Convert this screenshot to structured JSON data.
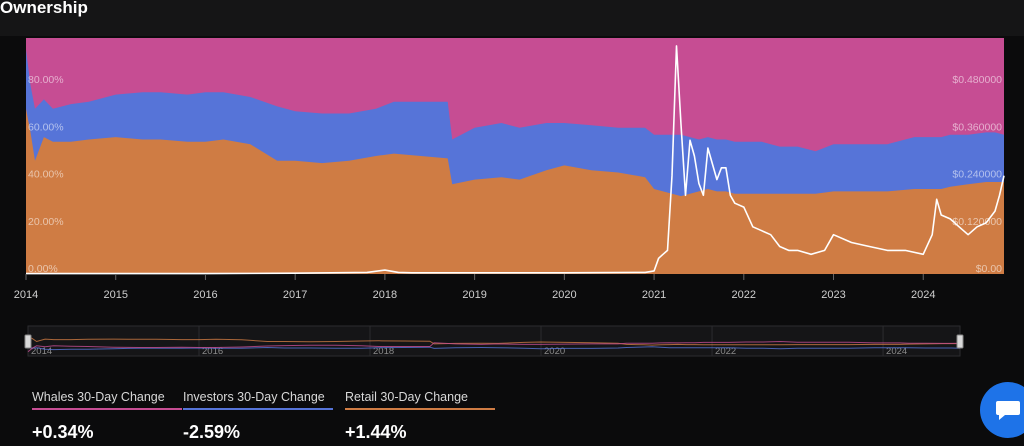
{
  "page": {
    "title": "Ownership"
  },
  "colors": {
    "whales": "#c64d93",
    "investors": "#5674d8",
    "retail": "#cf7c44",
    "price": "#ffffff"
  },
  "chart_data": {
    "type": "area",
    "x_range": [
      2014.0,
      2024.9
    ],
    "x_ticks": [
      {
        "value": 2014,
        "label": "2014"
      },
      {
        "value": 2015,
        "label": "2015"
      },
      {
        "value": 2016,
        "label": "2016"
      },
      {
        "value": 2017,
        "label": "2017"
      },
      {
        "value": 2018,
        "label": "2018"
      },
      {
        "value": 2019,
        "label": "2019"
      },
      {
        "value": 2020,
        "label": "2020"
      },
      {
        "value": 2021,
        "label": "2021"
      },
      {
        "value": 2022,
        "label": "2022"
      },
      {
        "value": 2023,
        "label": "2023"
      },
      {
        "value": 2024,
        "label": "2024"
      }
    ],
    "y_left": {
      "range": [
        0,
        100
      ],
      "ticks": [
        {
          "value": 0,
          "label": "0.00%"
        },
        {
          "value": 20,
          "label": "20.00%"
        },
        {
          "value": 40,
          "label": "40.00%"
        },
        {
          "value": 60,
          "label": "60.00%"
        },
        {
          "value": 80,
          "label": "80.00%"
        }
      ]
    },
    "y_right": {
      "range": [
        0,
        0.6
      ],
      "ticks": [
        {
          "value": 0,
          "label": "$0.00"
        },
        {
          "value": 0.12,
          "label": "$0.120000"
        },
        {
          "value": 0.24,
          "label": "$0.240000"
        },
        {
          "value": 0.36,
          "label": "$0.360000"
        },
        {
          "value": 0.48,
          "label": "$0.480000"
        }
      ]
    },
    "x": [
      2014.0,
      2014.05,
      2014.1,
      2014.2,
      2014.3,
      2014.5,
      2014.7,
      2015.0,
      2015.3,
      2015.5,
      2015.8,
      2016.0,
      2016.2,
      2016.5,
      2016.8,
      2017.0,
      2017.3,
      2017.6,
      2017.9,
      2018.1,
      2018.4,
      2018.7,
      2018.75,
      2019.0,
      2019.3,
      2019.5,
      2019.8,
      2020.0,
      2020.3,
      2020.6,
      2020.9,
      2021.0,
      2021.2,
      2021.3,
      2021.4,
      2021.5,
      2021.6,
      2021.7,
      2021.8,
      2021.9,
      2022.0,
      2022.2,
      2022.4,
      2022.6,
      2022.8,
      2023.0,
      2023.3,
      2023.6,
      2023.9,
      2024.1,
      2024.2,
      2024.3,
      2024.5,
      2024.7,
      2024.8,
      2024.9
    ],
    "series": [
      {
        "name": "Retail",
        "values": [
          70,
          60,
          48,
          58,
          56,
          56,
          57,
          58,
          57,
          57,
          56,
          56,
          57,
          55,
          48,
          48,
          47,
          48,
          50,
          51,
          50,
          49,
          38,
          40,
          41,
          40,
          44,
          46,
          44,
          43,
          41,
          36,
          34,
          33,
          34,
          35,
          36,
          35,
          35,
          34,
          34,
          34,
          34,
          34,
          34,
          35,
          35,
          35,
          36,
          36,
          36,
          37,
          38,
          39,
          39,
          39
        ]
      },
      {
        "name": "Investors",
        "values": [
          25,
          20,
          22,
          16,
          14,
          16,
          16,
          18,
          20,
          20,
          20,
          21,
          20,
          20,
          23,
          21,
          21,
          20,
          20,
          22,
          23,
          24,
          19,
          22,
          23,
          22,
          20,
          18,
          19,
          19,
          21,
          23,
          25,
          26,
          24,
          22,
          22,
          22,
          22,
          22,
          22,
          22,
          20,
          20,
          18,
          20,
          20,
          20,
          22,
          22,
          22,
          22,
          21,
          21,
          21,
          20
        ]
      },
      {
        "name": "Whales",
        "values": [
          5,
          20,
          30,
          26,
          30,
          28,
          27,
          24,
          23,
          23,
          24,
          23,
          23,
          25,
          29,
          31,
          32,
          32,
          30,
          27,
          27,
          27,
          43,
          38,
          36,
          38,
          36,
          36,
          37,
          38,
          38,
          41,
          41,
          41,
          42,
          43,
          42,
          43,
          43,
          44,
          44,
          44,
          46,
          46,
          48,
          45,
          45,
          45,
          42,
          42,
          42,
          41,
          41,
          40,
          40,
          41
        ]
      }
    ],
    "price": {
      "x": [
        2014.0,
        2014.5,
        2015.0,
        2016.0,
        2017.0,
        2017.8,
        2018.0,
        2018.15,
        2018.3,
        2019.0,
        2020.0,
        2020.9,
        2021.0,
        2021.05,
        2021.1,
        2021.15,
        2021.2,
        2021.25,
        2021.3,
        2021.35,
        2021.4,
        2021.45,
        2021.5,
        2021.55,
        2021.6,
        2021.65,
        2021.7,
        2021.75,
        2021.8,
        2021.85,
        2021.9,
        2022.0,
        2022.1,
        2022.2,
        2022.3,
        2022.4,
        2022.5,
        2022.6,
        2022.75,
        2022.9,
        2023.0,
        2023.2,
        2023.4,
        2023.6,
        2023.8,
        2024.0,
        2024.1,
        2024.15,
        2024.2,
        2024.3,
        2024.4,
        2024.5,
        2024.6,
        2024.7,
        2024.8,
        2024.85,
        2024.9
      ],
      "values": [
        0.001,
        0.001,
        0.001,
        0.001,
        0.002,
        0.004,
        0.01,
        0.004,
        0.003,
        0.003,
        0.003,
        0.004,
        0.008,
        0.04,
        0.05,
        0.06,
        0.25,
        0.58,
        0.38,
        0.2,
        0.34,
        0.3,
        0.23,
        0.2,
        0.32,
        0.28,
        0.24,
        0.27,
        0.27,
        0.2,
        0.18,
        0.17,
        0.12,
        0.11,
        0.1,
        0.07,
        0.06,
        0.06,
        0.05,
        0.06,
        0.1,
        0.08,
        0.07,
        0.06,
        0.06,
        0.05,
        0.1,
        0.19,
        0.15,
        0.14,
        0.12,
        0.1,
        0.12,
        0.13,
        0.16,
        0.2,
        0.25
      ]
    }
  },
  "navigator": {
    "ticks": [
      {
        "value": 2014,
        "label": "2014"
      },
      {
        "value": 2016,
        "label": "2016"
      },
      {
        "value": 2018,
        "label": "2018"
      },
      {
        "value": 2020,
        "label": "2020"
      },
      {
        "value": 2022,
        "label": "2022"
      },
      {
        "value": 2024,
        "label": "2024"
      }
    ]
  },
  "stats": [
    {
      "label": "Whales 30-Day Change",
      "value": "+0.34%"
    },
    {
      "label": "Investors 30-Day Change",
      "value": "-2.59%"
    },
    {
      "label": "Retail 30-Day Change",
      "value": "+1.44%"
    }
  ],
  "chat": {
    "icon": "chat-bubble-icon"
  }
}
